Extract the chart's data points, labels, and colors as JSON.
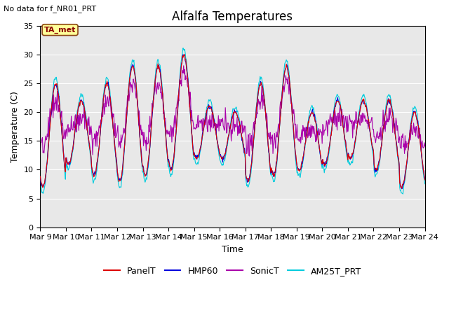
{
  "title": "Alfalfa Temperatures",
  "xlabel": "Time",
  "ylabel": "Temperature (C)",
  "no_data_text": "No data for f_NR01_PRT",
  "annotation_text": "TA_met",
  "ylim": [
    0,
    35
  ],
  "yticks": [
    0,
    5,
    10,
    15,
    20,
    25,
    30,
    35
  ],
  "xtick_labels": [
    "Mar 9",
    "Mar 10",
    "Mar 11",
    "Mar 12",
    "Mar 13",
    "Mar 14",
    "Mar 15",
    "Mar 16",
    "Mar 17",
    "Mar 18",
    "Mar 19",
    "Mar 20",
    "Mar 21",
    "Mar 22",
    "Mar 23",
    "Mar 24"
  ],
  "colors": {
    "PanelT": "#dd0000",
    "HMP60": "#0000dd",
    "SonicT": "#aa00aa",
    "AM25T_PRT": "#00ccdd"
  },
  "background_color": "#e8e8e8",
  "title_fontsize": 12,
  "axis_label_fontsize": 9,
  "tick_label_fontsize": 8,
  "legend_fontsize": 9,
  "annotation_fontsize": 8,
  "no_data_fontsize": 8
}
